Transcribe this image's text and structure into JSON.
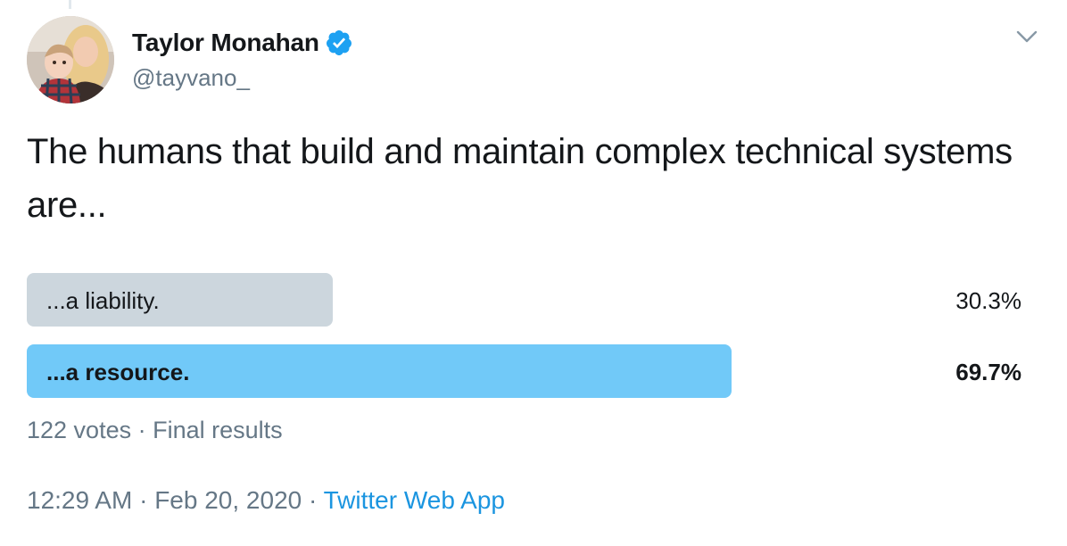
{
  "tweet": {
    "author": {
      "display_name": "Taylor Monahan",
      "handle": "@tayvano_",
      "verified": true
    },
    "text": "The humans that build and maintain complex technical systems are...",
    "poll": {
      "options": [
        {
          "label": "...a liability.",
          "percent_text": "30.3%",
          "share": 0.303,
          "winner": false
        },
        {
          "label": "...a resource.",
          "percent_text": "69.7%",
          "share": 0.697,
          "winner": true
        }
      ],
      "votes": "122 votes",
      "separator": "·",
      "status": "Final results"
    },
    "time": "12:29 AM",
    "date": "Feb 20, 2020",
    "dot": "·",
    "source": "Twitter Web App"
  },
  "icons": {
    "verified": "verified-badge-icon",
    "more": "chevron-down-icon"
  },
  "colors": {
    "accent": "#1da1f2",
    "link": "#1b95e0",
    "winner_bar": "#71c9f8",
    "loser_bar": "#ccd6dd",
    "muted_text": "#657786",
    "text": "#14171a"
  }
}
